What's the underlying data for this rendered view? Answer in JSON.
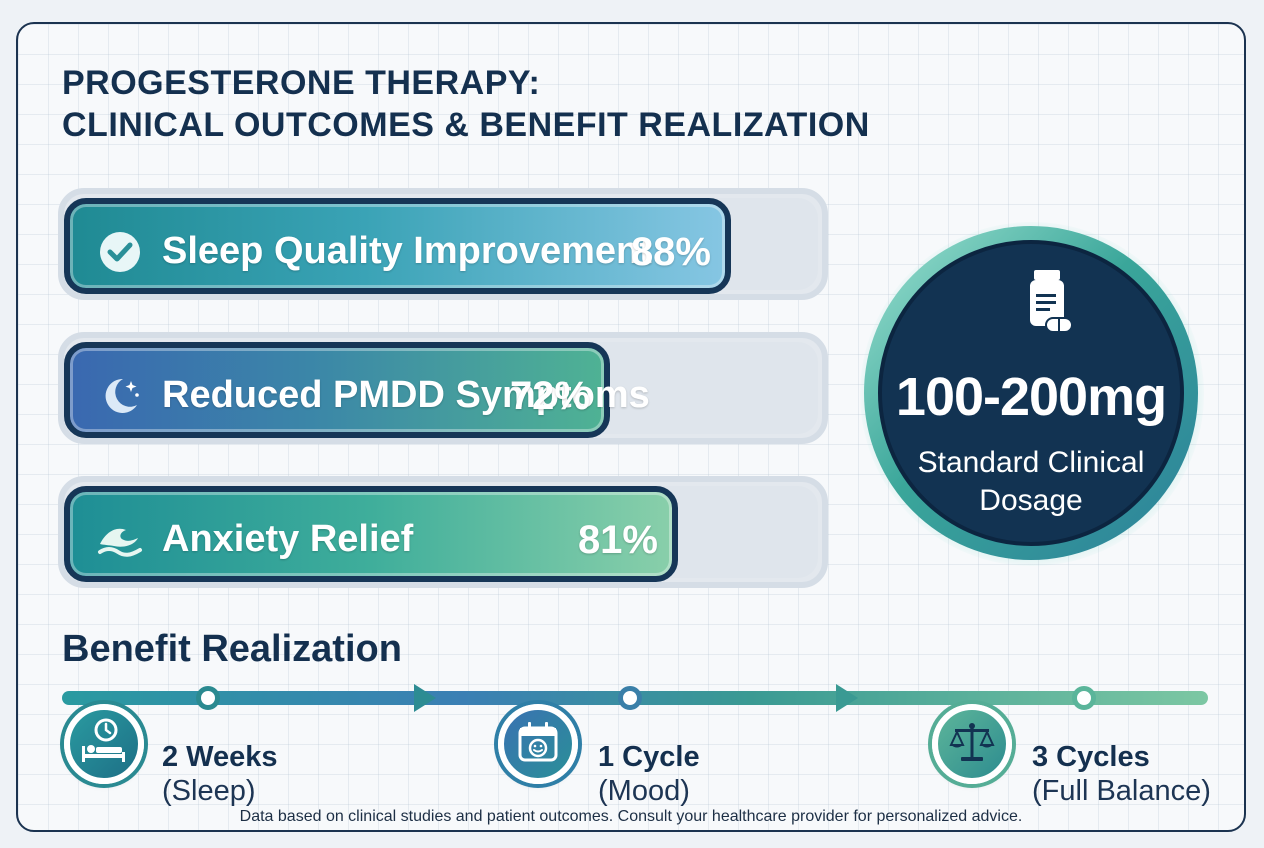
{
  "title": {
    "line1": "PROGESTERONE THERAPY:",
    "line2": "CLINICAL OUTCOMES & BENEFIT REALIZATION"
  },
  "outcomes": [
    {
      "label": "Sleep Quality Improvement",
      "value_text": "88%",
      "percent": 88,
      "icon": "check-circle-icon"
    },
    {
      "label": "Reduced PMDD Symptoms",
      "value_text": "72%",
      "percent": 72,
      "icon": "moon-stars-icon"
    },
    {
      "label": "Anxiety Relief",
      "value_text": "81%",
      "percent": 81,
      "icon": "wave-icon"
    }
  ],
  "dosage": {
    "amount": "100-200mg",
    "caption_line1": "Standard Clinical",
    "caption_line2": "Dosage",
    "icon": "pill-bottle-icon"
  },
  "benefit_realization": {
    "heading": "Benefit Realization",
    "stages": [
      {
        "title": "2 Weeks",
        "subtitle": "(Sleep)",
        "icon": "sleep-clock-icon"
      },
      {
        "title": "1 Cycle",
        "subtitle": "(Mood)",
        "icon": "calendar-smile-icon"
      },
      {
        "title": "3 Cycles",
        "subtitle": "(Full Balance)",
        "icon": "balance-scale-icon"
      }
    ]
  },
  "footnote": "Data based on clinical studies and patient outcomes. Consult your healthcare provider for personalized advice.",
  "colors": {
    "navy": "#14304f",
    "teal": "#2a9aa0",
    "blue": "#3a68b0",
    "mint": "#7cc7a3"
  }
}
